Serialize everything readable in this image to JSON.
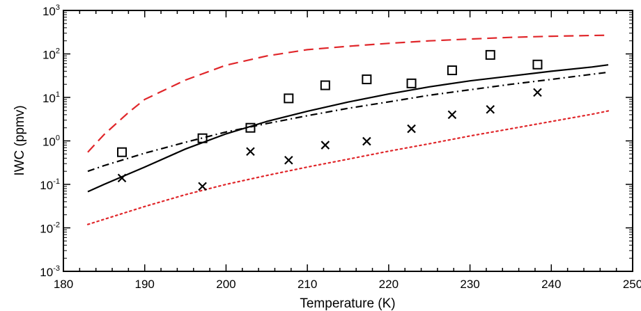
{
  "chart_data": {
    "type": "scatter",
    "title": "",
    "xlabel": "Temperature (K)",
    "ylabel": "IWC (ppmv)",
    "xlim": [
      180,
      250
    ],
    "ylim": [
      0.001,
      1000
    ],
    "yscale": "log",
    "grid": false,
    "x_ticks": [
      "180",
      "190",
      "200",
      "210",
      "220",
      "230",
      "240",
      "250"
    ],
    "y_ticks": [
      {
        "value": 0.001,
        "label": "10",
        "exp": "-3"
      },
      {
        "value": 0.01,
        "label": "10",
        "exp": "-2"
      },
      {
        "value": 0.1,
        "label": "10",
        "exp": "-1"
      },
      {
        "value": 1,
        "label": "10",
        "exp": "0"
      },
      {
        "value": 10,
        "label": "10",
        "exp": "1"
      },
      {
        "value": 100,
        "label": "10",
        "exp": "2"
      },
      {
        "value": 1000,
        "label": "10",
        "exp": "3"
      }
    ],
    "series": [
      {
        "kind": "points",
        "marker": "square",
        "color": "#000000",
        "x": [
          187.2,
          197.1,
          203.0,
          207.7,
          212.2,
          217.3,
          222.8,
          227.8,
          232.5,
          238.3
        ],
        "y": [
          0.55,
          1.15,
          2.0,
          9.5,
          19.0,
          26.0,
          21.0,
          42.0,
          95.0,
          57.0
        ]
      },
      {
        "kind": "points",
        "marker": "x",
        "color": "#000000",
        "x": [
          187.2,
          197.1,
          203.0,
          207.7,
          212.2,
          217.3,
          222.8,
          227.8,
          232.5,
          238.3
        ],
        "y": [
          0.14,
          0.09,
          0.57,
          0.36,
          0.8,
          0.98,
          1.9,
          4.0,
          5.3,
          13.0
        ]
      },
      {
        "kind": "line",
        "style": "solid",
        "color": "#000000",
        "x": [
          183,
          185,
          190,
          195,
          200,
          205,
          210,
          215,
          220,
          225,
          230,
          235,
          240,
          245,
          247
        ],
        "y": [
          0.068,
          0.1,
          0.25,
          0.65,
          1.45,
          2.8,
          4.8,
          7.8,
          12.0,
          17.5,
          24.0,
          31.0,
          40.0,
          50.0,
          56.0
        ]
      },
      {
        "kind": "line",
        "style": "dashdot",
        "color": "#000000",
        "x": [
          183,
          185,
          190,
          195,
          200,
          205,
          210,
          215,
          220,
          225,
          230,
          235,
          240,
          245,
          247
        ],
        "y": [
          0.2,
          0.27,
          0.52,
          0.93,
          1.6,
          2.5,
          3.8,
          5.6,
          7.9,
          11.2,
          15.0,
          20.0,
          26.0,
          34.0,
          38.0
        ]
      },
      {
        "kind": "line",
        "style": "dashed",
        "color": "#e0262a",
        "x": [
          183,
          185,
          188,
          190,
          195,
          200,
          205,
          210,
          215,
          220,
          225,
          230,
          235,
          240,
          245,
          247
        ],
        "y": [
          0.55,
          1.4,
          4.5,
          9.0,
          25.0,
          55.0,
          90.0,
          125.0,
          150.0,
          175.0,
          200.0,
          220.0,
          240.0,
          255.0,
          265.0,
          268.0
        ]
      },
      {
        "kind": "line",
        "style": "dotted",
        "color": "#e0262a",
        "x": [
          183,
          190,
          195,
          200,
          205,
          210,
          215,
          220,
          225,
          230,
          235,
          240,
          245,
          247
        ],
        "y": [
          0.012,
          0.031,
          0.058,
          0.1,
          0.16,
          0.25,
          0.38,
          0.58,
          0.86,
          1.3,
          1.9,
          2.8,
          4.1,
          4.9
        ]
      }
    ]
  }
}
